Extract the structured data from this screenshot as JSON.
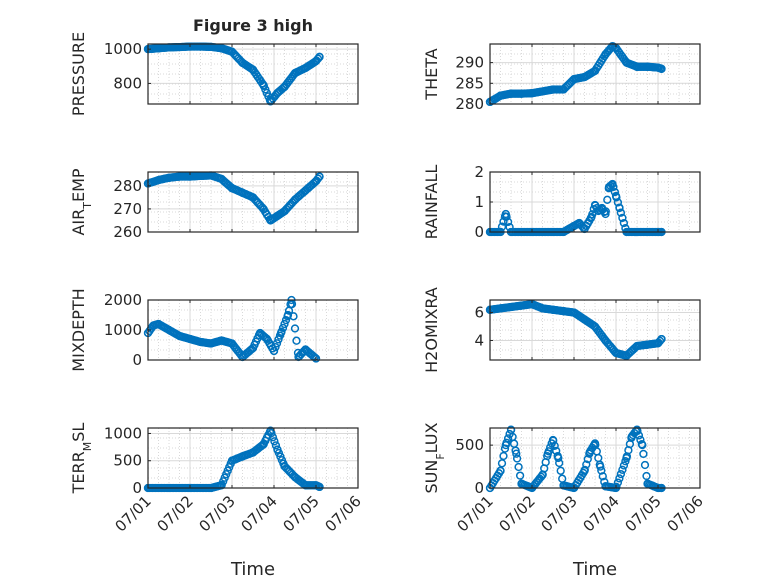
{
  "title": "Figure 3 high",
  "colors": {
    "marker": "#0072bd",
    "grid": "#d9d9d9",
    "axis": "#262626",
    "background": "#ffffff"
  },
  "chart_data": [
    {
      "type": "scatter",
      "position": "top-left",
      "grid": true,
      "ylabel": "PRESSURE",
      "xlabel": "",
      "title": "Figure 3 high",
      "xlim": [
        "07/01",
        "07/06"
      ],
      "ylim": [
        680,
        1030
      ],
      "yticks": [
        800,
        1000
      ],
      "x": [
        "07/01 00:00",
        "07/01 06:00",
        "07/01 12:00",
        "07/01 18:00",
        "07/02 00:00",
        "07/02 06:00",
        "07/02 12:00",
        "07/02 18:00",
        "07/03 00:00",
        "07/03 06:00",
        "07/03 12:00",
        "07/03 18:00",
        "07/03 22:00",
        "07/04 02:00",
        "07/04 06:00",
        "07/04 12:00",
        "07/04 18:00",
        "07/05 00:00",
        "07/05 02:00"
      ],
      "y": [
        1000,
        1005,
        1010,
        1012,
        1015,
        1015,
        1013,
        1005,
        985,
        920,
        880,
        790,
        695,
        745,
        780,
        860,
        890,
        930,
        955
      ]
    },
    {
      "type": "scatter",
      "position": "top-right",
      "grid": true,
      "ylabel": "THETA",
      "xlabel": "",
      "xlim": [
        "07/01",
        "07/06"
      ],
      "ylim": [
        280,
        294.5
      ],
      "yticks": [
        280,
        285,
        290
      ],
      "x": [
        "07/01 00:00",
        "07/01 06:00",
        "07/01 12:00",
        "07/01 18:00",
        "07/02 00:00",
        "07/02 12:00",
        "07/02 18:00",
        "07/03 00:00",
        "07/03 06:00",
        "07/03 12:00",
        "07/03 18:00",
        "07/03 22:00",
        "07/04 00:00",
        "07/04 06:00",
        "07/04 12:00",
        "07/04 18:00",
        "07/05 00:00",
        "07/05 02:00"
      ],
      "y": [
        280.5,
        282,
        282.5,
        282.5,
        282.6,
        283.5,
        283.5,
        286,
        286.5,
        288,
        292,
        294,
        293.5,
        290,
        289,
        289,
        288.8,
        288.5
      ]
    },
    {
      "type": "scatter",
      "position": "second-left",
      "grid": true,
      "ylabel": "AIR_TEMP",
      "xlabel": "",
      "xlim": [
        "07/01",
        "07/06"
      ],
      "ylim": [
        260,
        286
      ],
      "yticks": [
        260,
        270,
        280
      ],
      "x": [
        "07/01 00:00",
        "07/01 06:00",
        "07/01 12:00",
        "07/01 18:00",
        "07/02 00:00",
        "07/02 06:00",
        "07/02 12:00",
        "07/02 18:00",
        "07/03 00:00",
        "07/03 06:00",
        "07/03 12:00",
        "07/03 18:00",
        "07/03 22:00",
        "07/04 02:00",
        "07/04 06:00",
        "07/04 12:00",
        "07/04 18:00",
        "07/05 00:00",
        "07/05 02:00"
      ],
      "y": [
        281,
        282.5,
        283.5,
        284,
        284,
        284.3,
        284.5,
        283,
        279,
        277,
        275,
        270,
        265,
        267,
        269,
        274,
        278,
        282,
        284
      ]
    },
    {
      "type": "scatter",
      "position": "second-right",
      "grid": true,
      "ylabel": "RAINFALL",
      "xlabel": "",
      "xlim": [
        "07/01",
        "07/06"
      ],
      "ylim": [
        0,
        2
      ],
      "yticks": [
        0,
        1,
        2
      ],
      "x": [
        "07/01 00:00",
        "07/01 06:00",
        "07/01 09:00",
        "07/01 12:00",
        "07/01 18:00",
        "07/02 00:00",
        "07/02 06:00",
        "07/02 12:00",
        "07/02 18:00",
        "07/03 00:00",
        "07/03 03:00",
        "07/03 06:00",
        "07/03 10:00",
        "07/03 12:00",
        "07/03 14:00",
        "07/03 16:00",
        "07/03 18:00",
        "07/03 20:00",
        "07/03 22:00",
        "07/04 00:00",
        "07/04 02:00",
        "07/04 06:00",
        "07/04 12:00",
        "07/04 18:00",
        "07/05 00:00",
        "07/05 02:00"
      ],
      "y": [
        0,
        0,
        0.6,
        0,
        0,
        0,
        0,
        0,
        0,
        0.2,
        0.3,
        0.1,
        0.5,
        0.9,
        0.7,
        0.8,
        0.6,
        1.5,
        1.6,
        1.2,
        0.8,
        0,
        0,
        0,
        0,
        0
      ]
    },
    {
      "type": "scatter",
      "position": "third-left",
      "grid": true,
      "ylabel": "MIXDEPTH",
      "xlabel": "",
      "xlim": [
        "07/01",
        "07/06"
      ],
      "ylim": [
        0,
        2000
      ],
      "yticks": [
        0,
        1000,
        2000
      ],
      "x": [
        "07/01 00:00",
        "07/01 03:00",
        "07/01 06:00",
        "07/01 12:00",
        "07/01 18:00",
        "07/02 00:00",
        "07/02 06:00",
        "07/02 12:00",
        "07/02 18:00",
        "07/03 00:00",
        "07/03 06:00",
        "07/03 12:00",
        "07/03 16:00",
        "07/03 20:00",
        "07/04 00:00",
        "07/04 04:00",
        "07/04 08:00",
        "07/04 10:00",
        "07/04 14:00",
        "07/04 18:00",
        "07/05 00:00"
      ],
      "y": [
        900,
        1150,
        1200,
        1000,
        800,
        700,
        600,
        550,
        650,
        550,
        100,
        400,
        900,
        700,
        300,
        900,
        1500,
        2000,
        100,
        350,
        50
      ]
    },
    {
      "type": "scatter",
      "position": "third-right",
      "grid": true,
      "ylabel": "H2OMIXRA",
      "xlabel": "",
      "xlim": [
        "07/01",
        "07/06"
      ],
      "ylim": [
        2.6,
        6.9
      ],
      "yticks": [
        4,
        6
      ],
      "x": [
        "07/01 00:00",
        "07/01 06:00",
        "07/01 12:00",
        "07/01 18:00",
        "07/02 00:00",
        "07/02 06:00",
        "07/02 12:00",
        "07/02 18:00",
        "07/03 00:00",
        "07/03 06:00",
        "07/03 12:00",
        "07/03 18:00",
        "07/04 00:00",
        "07/04 06:00",
        "07/04 12:00",
        "07/04 18:00",
        "07/05 00:00",
        "07/05 02:00"
      ],
      "y": [
        6.2,
        6.3,
        6.4,
        6.5,
        6.6,
        6.3,
        6.2,
        6.1,
        6.0,
        5.5,
        5.0,
        4.0,
        3.1,
        2.9,
        3.6,
        3.7,
        3.8,
        4.1
      ]
    },
    {
      "type": "scatter",
      "position": "bottom-left",
      "grid": true,
      "ylabel": "TERR_MSL",
      "xlabel": "Time",
      "xlim": [
        "07/01",
        "07/06"
      ],
      "ylim": [
        0,
        1100
      ],
      "yticks": [
        0,
        500,
        1000
      ],
      "x": [
        "07/01 00:00",
        "07/01 12:00",
        "07/02 00:00",
        "07/02 12:00",
        "07/02 18:00",
        "07/03 00:00",
        "07/03 06:00",
        "07/03 12:00",
        "07/03 18:00",
        "07/03 22:00",
        "07/04 02:00",
        "07/04 06:00",
        "07/04 12:00",
        "07/04 18:00",
        "07/05 00:00",
        "07/05 02:00"
      ],
      "y": [
        0,
        0,
        0,
        0,
        50,
        500,
        580,
        650,
        800,
        1050,
        700,
        400,
        200,
        50,
        50,
        20
      ]
    },
    {
      "type": "scatter",
      "position": "bottom-right",
      "grid": true,
      "ylabel": "SUN_FLUX",
      "xlabel": "Time",
      "xlim": [
        "07/01",
        "07/06"
      ],
      "ylim": [
        0,
        700
      ],
      "yticks": [
        0,
        500
      ],
      "x": [
        "07/01 00:00",
        "07/01 06:00",
        "07/01 09:00",
        "07/01 12:00",
        "07/01 15:00",
        "07/01 18:00",
        "07/02 00:00",
        "07/02 06:00",
        "07/02 09:00",
        "07/02 12:00",
        "07/02 15:00",
        "07/02 18:00",
        "07/03 00:00",
        "07/03 06:00",
        "07/03 09:00",
        "07/03 12:00",
        "07/03 15:00",
        "07/03 18:00",
        "07/04 00:00",
        "07/04 06:00",
        "07/04 09:00",
        "07/04 12:00",
        "07/04 15:00",
        "07/04 18:00",
        "07/05 00:00",
        "07/05 02:00"
      ],
      "y": [
        0,
        200,
        500,
        680,
        400,
        50,
        0,
        150,
        400,
        560,
        350,
        30,
        0,
        200,
        420,
        520,
        250,
        20,
        0,
        350,
        600,
        680,
        500,
        50,
        0,
        0
      ]
    }
  ]
}
